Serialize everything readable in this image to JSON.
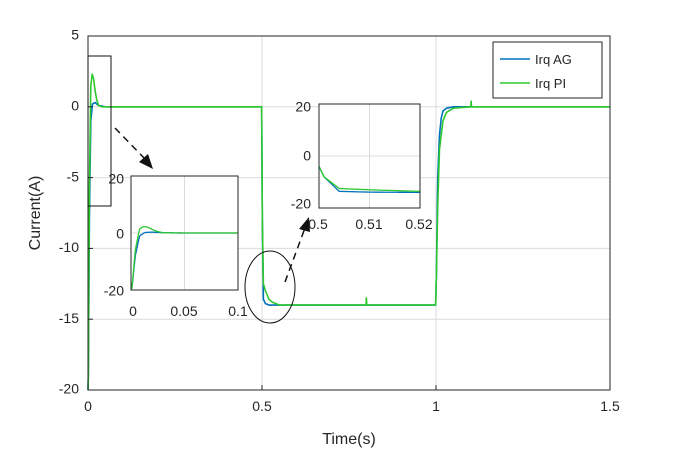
{
  "chart_data": {
    "type": "line",
    "title": "",
    "xlabel": "Time(s)",
    "ylabel": "Current(A)",
    "xlim": [
      0,
      1.5
    ],
    "ylim": [
      -20,
      5
    ],
    "xticks": [
      0,
      0.5,
      1,
      1.5
    ],
    "xtick_labels": [
      "0",
      "0.5",
      "1",
      "1.5"
    ],
    "yticks": [
      5,
      0,
      -5,
      -10,
      -15,
      -20
    ],
    "ytick_labels": [
      "5",
      "0",
      "-5",
      "-10",
      "-15",
      "-20"
    ],
    "grid": true,
    "legend_position": "top-right",
    "series": [
      {
        "name": "Irq AG",
        "color": "#0072BD",
        "x": [
          0,
          0.001,
          0.004,
          0.008,
          0.013,
          0.02,
          0.03,
          0.05,
          0.1,
          0.2,
          0.3,
          0.4,
          0.499,
          0.501,
          0.504,
          0.51,
          0.52,
          0.53,
          0.55,
          0.6,
          0.7,
          0.8,
          0.9,
          0.999,
          1.001,
          1.005,
          1.01,
          1.015,
          1.02,
          1.03,
          1.05,
          1.1,
          1.2,
          1.3,
          1.4,
          1.5
        ],
        "y": [
          -20,
          -19,
          -8,
          -1,
          0.2,
          0.3,
          0.1,
          0,
          0,
          0,
          0,
          0,
          0,
          -8,
          -13.6,
          -13.9,
          -14.0,
          -14.0,
          -14.0,
          -14.0,
          -14.0,
          -14.0,
          -14.0,
          -14.0,
          -12,
          -5,
          -2,
          -0.8,
          -0.3,
          -0.1,
          0,
          0,
          0,
          0,
          0,
          0
        ]
      },
      {
        "name": "Irq PI",
        "color": "#2DC82D",
        "x": [
          0,
          0.001,
          0.004,
          0.008,
          0.012,
          0.016,
          0.02,
          0.025,
          0.03,
          0.04,
          0.05,
          0.07,
          0.1,
          0.2,
          0.3,
          0.4,
          0.499,
          0.501,
          0.504,
          0.51,
          0.52,
          0.53,
          0.55,
          0.6,
          0.7,
          0.799,
          0.8,
          0.801,
          0.9,
          0.999,
          1.001,
          1.005,
          1.01,
          1.02,
          1.03,
          1.05,
          1.1,
          1.101,
          1.102,
          1.2,
          1.3,
          1.4,
          1.5
        ],
        "y": [
          -20,
          -19,
          -6,
          1.5,
          2.3,
          2.0,
          1.2,
          0.5,
          0.1,
          0,
          0,
          0,
          0,
          0,
          0,
          0,
          0,
          -8,
          -12.5,
          -13.0,
          -13.6,
          -13.8,
          -14.0,
          -14.0,
          -14.0,
          -14.0,
          -13.5,
          -14.0,
          -14.0,
          -14.0,
          -12,
          -7,
          -3,
          -1,
          -0.4,
          -0.1,
          0,
          0.4,
          0,
          0,
          0,
          0,
          0
        ]
      }
    ],
    "insets": [
      {
        "xlim": [
          0,
          0.1
        ],
        "ylim": [
          -20,
          20
        ],
        "xtick_labels": [
          "0",
          "0.05",
          "0.1"
        ],
        "ytick_labels": [
          "20",
          "0",
          "-20"
        ]
      },
      {
        "xlim": [
          0.5,
          0.52
        ],
        "ylim": [
          -20,
          20
        ],
        "xtick_labels": [
          "0.5",
          "0.51",
          "0.52"
        ],
        "ytick_labels": [
          "20",
          "0",
          "-20"
        ]
      }
    ]
  }
}
